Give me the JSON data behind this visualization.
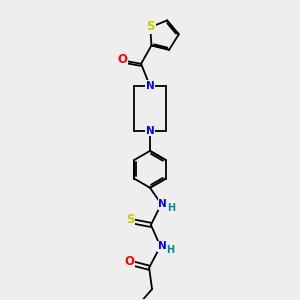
{
  "bg_color": "#eeeeee",
  "bond_color": "#000000",
  "atom_colors": {
    "N": "#0000ff",
    "O": "#ff0000",
    "S": "#cccc00",
    "C": "#000000",
    "H": "#008b8b"
  },
  "font_size": 7.5,
  "lw": 1.3
}
